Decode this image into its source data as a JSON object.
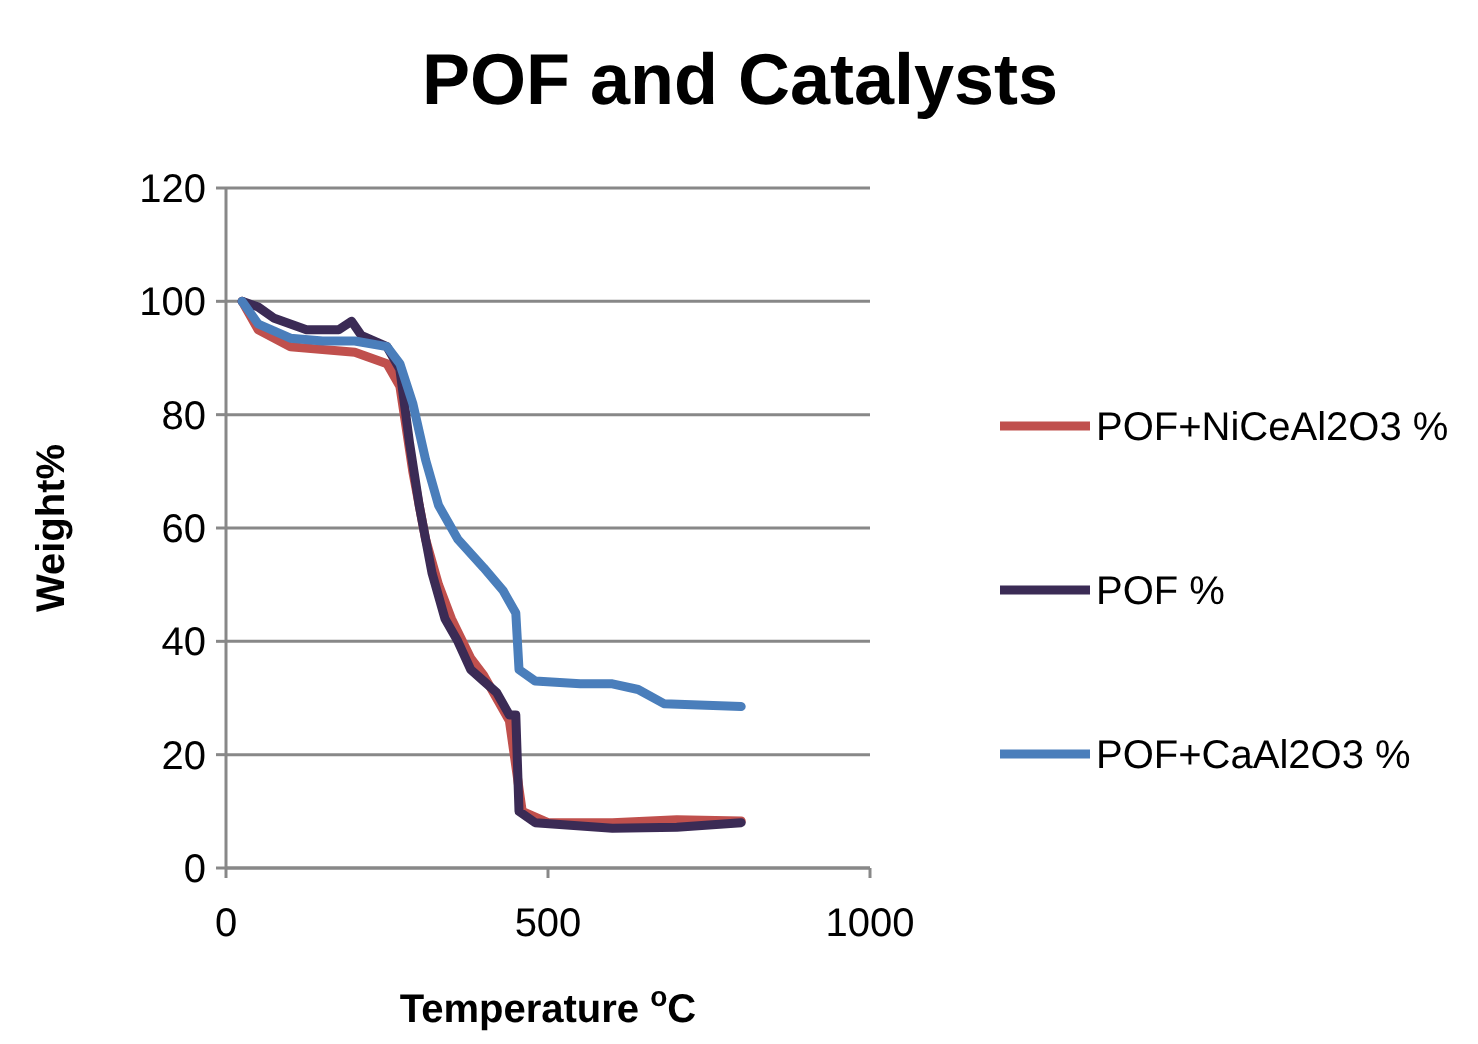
{
  "chart_data": {
    "type": "line",
    "title": "POF and Catalysts",
    "xlabel": "Temperature $^{o}$C",
    "ylabel": "Weight%",
    "xlim": [
      0,
      1000
    ],
    "xticks": [
      0,
      500,
      1000
    ],
    "ylim": [
      0,
      120
    ],
    "yticks": [
      0,
      20,
      40,
      60,
      80,
      100,
      120
    ],
    "grid": "y",
    "legend": "right",
    "marker": "none",
    "line_style": "solid",
    "series": [
      {
        "name": "POF+NiCeAl2O3 %",
        "color": "#c0504d",
        "x": [
          25,
          50,
          100,
          150,
          200,
          250,
          270,
          290,
          310,
          330,
          350,
          380,
          400,
          420,
          440,
          450,
          460,
          500,
          600,
          700,
          800
        ],
        "values": [
          100,
          95,
          92,
          91.5,
          91,
          89,
          85,
          70,
          58,
          50,
          44,
          37,
          34,
          30,
          26,
          18,
          10,
          8,
          8,
          8.5,
          8.3
        ]
      },
      {
        "name": "POF %",
        "color": "#3b2b55",
        "x": [
          25,
          50,
          75,
          100,
          125,
          150,
          175,
          195,
          210,
          250,
          270,
          285,
          300,
          320,
          340,
          360,
          380,
          400,
          420,
          440,
          450,
          455,
          480,
          600,
          700,
          800
        ],
        "values": [
          100,
          99,
          97,
          96,
          95,
          95,
          95,
          96.5,
          94,
          92,
          88,
          75,
          64,
          52,
          44,
          40,
          35,
          33,
          31,
          27,
          27,
          10,
          8,
          7,
          7.2,
          8
        ]
      },
      {
        "name": "POF+CaAl2O3 %",
        "color": "#4a7ebb",
        "x": [
          25,
          50,
          100,
          150,
          200,
          250,
          270,
          290,
          310,
          330,
          360,
          400,
          430,
          450,
          455,
          480,
          550,
          600,
          640,
          680,
          800
        ],
        "values": [
          100,
          96,
          93.5,
          93,
          93,
          92,
          89,
          82,
          72,
          64,
          58,
          53,
          49,
          45,
          35,
          33,
          32.5,
          32.5,
          31.5,
          29,
          28.5
        ]
      }
    ]
  }
}
